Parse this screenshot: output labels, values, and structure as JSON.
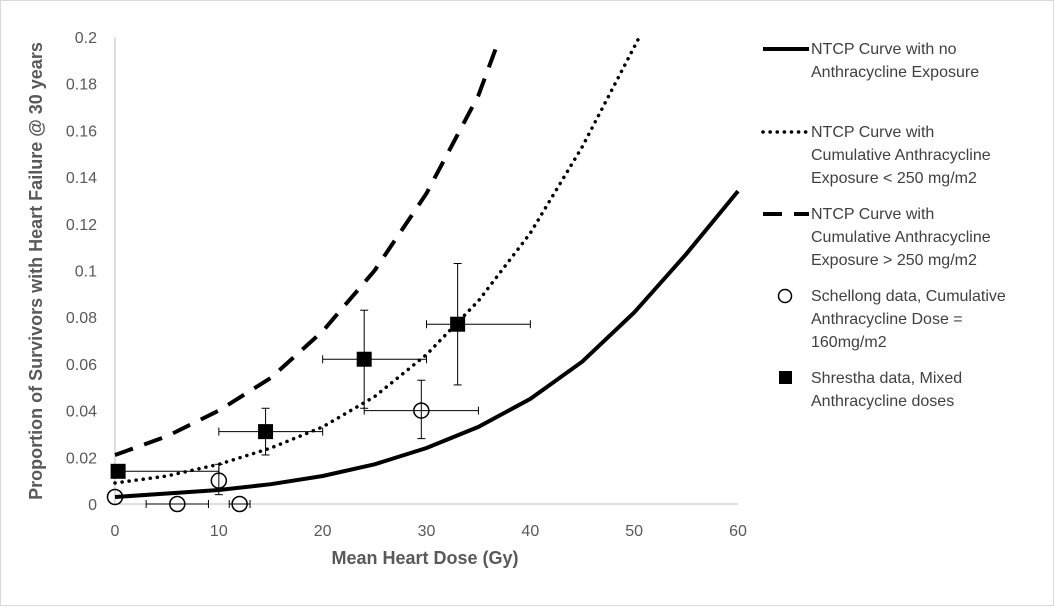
{
  "chart_data": {
    "type": "scatter",
    "title": "",
    "xlabel": "Mean Heart Dose (Gy)",
    "ylabel": "Proportion of Survivors with Heart Failure @ 30 years",
    "xlim": [
      0,
      60
    ],
    "ylim": [
      0,
      0.2
    ],
    "xticks": [
      "0",
      "10",
      "20",
      "30",
      "40",
      "50",
      "60"
    ],
    "yticks": [
      "0",
      "0.02",
      "0.04",
      "0.06",
      "0.08",
      "0.1",
      "0.12",
      "0.14",
      "0.16",
      "0.18",
      "0.2"
    ],
    "grid": false,
    "legend_position": "right",
    "series": [
      {
        "name": "NTCP Curve with no Anthracycline Exposure",
        "style": "solid-line",
        "x": [
          0,
          5,
          10,
          15,
          20,
          25,
          30,
          35,
          40,
          45,
          50,
          55,
          60
        ],
        "y": [
          0.003,
          0.0045,
          0.006,
          0.0085,
          0.012,
          0.017,
          0.024,
          0.033,
          0.045,
          0.061,
          0.082,
          0.107,
          0.134
        ]
      },
      {
        "name": "NTCP Curve with Cumulative Anthracycline Exposure < 250 mg/m2",
        "style": "dotted-line",
        "x": [
          0,
          5,
          10,
          15,
          20,
          25,
          30,
          35,
          40,
          45,
          50.5
        ],
        "y": [
          0.009,
          0.012,
          0.017,
          0.024,
          0.033,
          0.046,
          0.064,
          0.087,
          0.116,
          0.153,
          0.2
        ]
      },
      {
        "name": "NTCP Curve with Cumulative Anthracycline Exposure > 250 mg/m2",
        "style": "dashed-line",
        "x": [
          0,
          5,
          10,
          15,
          20,
          25,
          30,
          35,
          37
        ],
        "y": [
          0.021,
          0.029,
          0.04,
          0.054,
          0.074,
          0.1,
          0.133,
          0.175,
          0.199
        ]
      },
      {
        "name": "Schellong data, Cumulative Anthracycline Dose = 160mg/m2",
        "style": "open-circle",
        "points": [
          {
            "x": 0,
            "y": 0.003,
            "xerr": [
              0,
              0
            ],
            "yerr": [
              0.003,
              0.003
            ]
          },
          {
            "x": 6,
            "y": 0,
            "xerr": [
              3,
              9
            ],
            "yerr": [
              0,
              0
            ]
          },
          {
            "x": 10,
            "y": 0.01,
            "xerr": [
              10,
              10
            ],
            "yerr": [
              0.004,
              0.017
            ]
          },
          {
            "x": 12,
            "y": 0,
            "xerr": [
              11,
              13
            ],
            "yerr": [
              0,
              0
            ]
          },
          {
            "x": 29.5,
            "y": 0.04,
            "xerr": [
              24,
              35
            ],
            "yerr": [
              0.028,
              0.053
            ]
          }
        ]
      },
      {
        "name": "Shrestha data, Mixed Anthracycline doses",
        "style": "filled-square",
        "points": [
          {
            "x": 0.3,
            "y": 0.014,
            "xerr": [
              0,
              10
            ],
            "yerr": [
              0.014,
              0.014
            ]
          },
          {
            "x": 14.5,
            "y": 0.031,
            "xerr": [
              10,
              20
            ],
            "yerr": [
              0.021,
              0.041
            ]
          },
          {
            "x": 24,
            "y": 0.062,
            "xerr": [
              20,
              30
            ],
            "yerr": [
              0.041,
              0.083
            ]
          },
          {
            "x": 33,
            "y": 0.077,
            "xerr": [
              30,
              40
            ],
            "yerr": [
              0.051,
              0.103
            ]
          }
        ]
      }
    ]
  },
  "legend": [
    {
      "style": "solid-line",
      "lines": [
        "NTCP Curve with no",
        "Anthracycline Exposure"
      ]
    },
    {
      "style": "dotted-line",
      "lines": [
        "NTCP Curve with",
        "Cumulative Anthracycline",
        "Exposure < 250 mg/m2"
      ]
    },
    {
      "style": "dashed-line",
      "lines": [
        "NTCP Curve with",
        "Cumulative Anthracycline",
        "Exposure > 250 mg/m2"
      ]
    },
    {
      "style": "open-circle",
      "lines": [
        "Schellong data, Cumulative",
        "Anthracycline Dose =",
        "160mg/m2"
      ]
    },
    {
      "style": "filled-square",
      "lines": [
        "Shrestha data, Mixed",
        "Anthracycline doses"
      ]
    }
  ]
}
